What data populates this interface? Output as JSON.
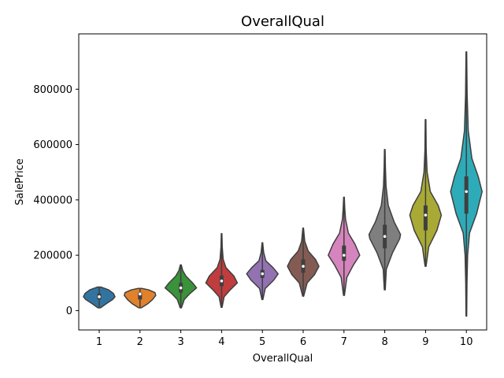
{
  "chart_data": {
    "type": "violin",
    "title": "OverallQual",
    "xlabel": "OverallQual",
    "ylabel": "SalePrice",
    "categories": [
      "1",
      "2",
      "3",
      "4",
      "5",
      "6",
      "7",
      "8",
      "9",
      "10"
    ],
    "ylim": [
      -70000,
      1000000
    ],
    "yticks": [
      0,
      200000,
      400000,
      600000,
      800000
    ],
    "ytick_labels": [
      "0",
      "200000",
      "400000",
      "600000",
      "800000"
    ],
    "grid": false,
    "legend": "none",
    "colors": [
      "#3274a1",
      "#e1812c",
      "#3a923a",
      "#c03d3e",
      "#9372b2",
      "#845b53",
      "#d684bd",
      "#7f7f7f",
      "#a9aa35",
      "#2eabb8"
    ],
    "violins": [
      {
        "category": "1",
        "min": 10000,
        "max": 85000,
        "q1": 40000,
        "q3": 62000,
        "median": 50000,
        "profile": [
          [
            10000,
            0.08
          ],
          [
            25000,
            0.45
          ],
          [
            40000,
            0.85
          ],
          [
            50000,
            1.0
          ],
          [
            62000,
            0.9
          ],
          [
            75000,
            0.6
          ],
          [
            85000,
            0.12
          ]
        ]
      },
      {
        "category": "2",
        "min": 10000,
        "max": 80000,
        "q1": 40000,
        "q3": 65000,
        "median": 60000,
        "profile": [
          [
            10000,
            0.08
          ],
          [
            25000,
            0.5
          ],
          [
            40000,
            0.8
          ],
          [
            55000,
            1.0
          ],
          [
            65000,
            0.95
          ],
          [
            75000,
            0.55
          ],
          [
            80000,
            0.12
          ]
        ]
      },
      {
        "category": "3",
        "min": 10000,
        "max": 165000,
        "q1": 65000,
        "q3": 100000,
        "median": 82000,
        "profile": [
          [
            10000,
            0.04
          ],
          [
            40000,
            0.22
          ],
          [
            60000,
            0.55
          ],
          [
            82000,
            1.0
          ],
          [
            100000,
            0.75
          ],
          [
            125000,
            0.32
          ],
          [
            145000,
            0.12
          ],
          [
            165000,
            0.03
          ]
        ]
      },
      {
        "category": "4",
        "min": 12000,
        "max": 278000,
        "q1": 88000,
        "q3": 127000,
        "median": 107000,
        "profile": [
          [
            12000,
            0.03
          ],
          [
            50000,
            0.16
          ],
          [
            75000,
            0.55
          ],
          [
            100000,
            1.0
          ],
          [
            125000,
            0.78
          ],
          [
            155000,
            0.28
          ],
          [
            185000,
            0.1
          ],
          [
            230000,
            0.04
          ],
          [
            278000,
            0.02
          ]
        ]
      },
      {
        "category": "5",
        "min": 40000,
        "max": 245000,
        "q1": 118000,
        "q3": 147000,
        "median": 133000,
        "profile": [
          [
            40000,
            0.03
          ],
          [
            80000,
            0.18
          ],
          [
            110000,
            0.72
          ],
          [
            133000,
            1.0
          ],
          [
            155000,
            0.68
          ],
          [
            180000,
            0.22
          ],
          [
            210000,
            0.08
          ],
          [
            245000,
            0.02
          ]
        ]
      },
      {
        "category": "6",
        "min": 52000,
        "max": 298000,
        "q1": 137000,
        "q3": 185000,
        "median": 160000,
        "profile": [
          [
            52000,
            0.03
          ],
          [
            100000,
            0.25
          ],
          [
            130000,
            0.72
          ],
          [
            160000,
            1.0
          ],
          [
            185000,
            0.78
          ],
          [
            215000,
            0.32
          ],
          [
            250000,
            0.1
          ],
          [
            298000,
            0.02
          ]
        ]
      },
      {
        "category": "7",
        "min": 55000,
        "max": 410000,
        "q1": 180000,
        "q3": 235000,
        "median": 200000,
        "profile": [
          [
            55000,
            0.03
          ],
          [
            120000,
            0.18
          ],
          [
            165000,
            0.6
          ],
          [
            200000,
            1.0
          ],
          [
            240000,
            0.7
          ],
          [
            280000,
            0.28
          ],
          [
            330000,
            0.1
          ],
          [
            370000,
            0.05
          ],
          [
            410000,
            0.02
          ]
        ]
      },
      {
        "category": "8",
        "min": 75000,
        "max": 582000,
        "q1": 225000,
        "q3": 310000,
        "median": 268000,
        "profile": [
          [
            75000,
            0.03
          ],
          [
            150000,
            0.1
          ],
          [
            210000,
            0.5
          ],
          [
            260000,
            0.95
          ],
          [
            275000,
            1.0
          ],
          [
            320000,
            0.6
          ],
          [
            380000,
            0.22
          ],
          [
            450000,
            0.08
          ],
          [
            520000,
            0.04
          ],
          [
            582000,
            0.02
          ]
        ]
      },
      {
        "category": "9",
        "min": 160000,
        "max": 690000,
        "q1": 290000,
        "q3": 380000,
        "median": 345000,
        "profile": [
          [
            160000,
            0.03
          ],
          [
            230000,
            0.2
          ],
          [
            290000,
            0.72
          ],
          [
            345000,
            1.0
          ],
          [
            380000,
            0.8
          ],
          [
            430000,
            0.3
          ],
          [
            500000,
            0.1
          ],
          [
            580000,
            0.04
          ],
          [
            690000,
            0.02
          ]
        ]
      },
      {
        "category": "10",
        "min": -20000,
        "max": 935000,
        "q1": 350000,
        "q3": 485000,
        "median": 430000,
        "profile": [
          [
            -20000,
            0.02
          ],
          [
            100000,
            0.04
          ],
          [
            200000,
            0.08
          ],
          [
            280000,
            0.2
          ],
          [
            350000,
            0.65
          ],
          [
            430000,
            1.0
          ],
          [
            485000,
            0.75
          ],
          [
            550000,
            0.35
          ],
          [
            650000,
            0.12
          ],
          [
            780000,
            0.05
          ],
          [
            935000,
            0.02
          ]
        ]
      }
    ]
  }
}
